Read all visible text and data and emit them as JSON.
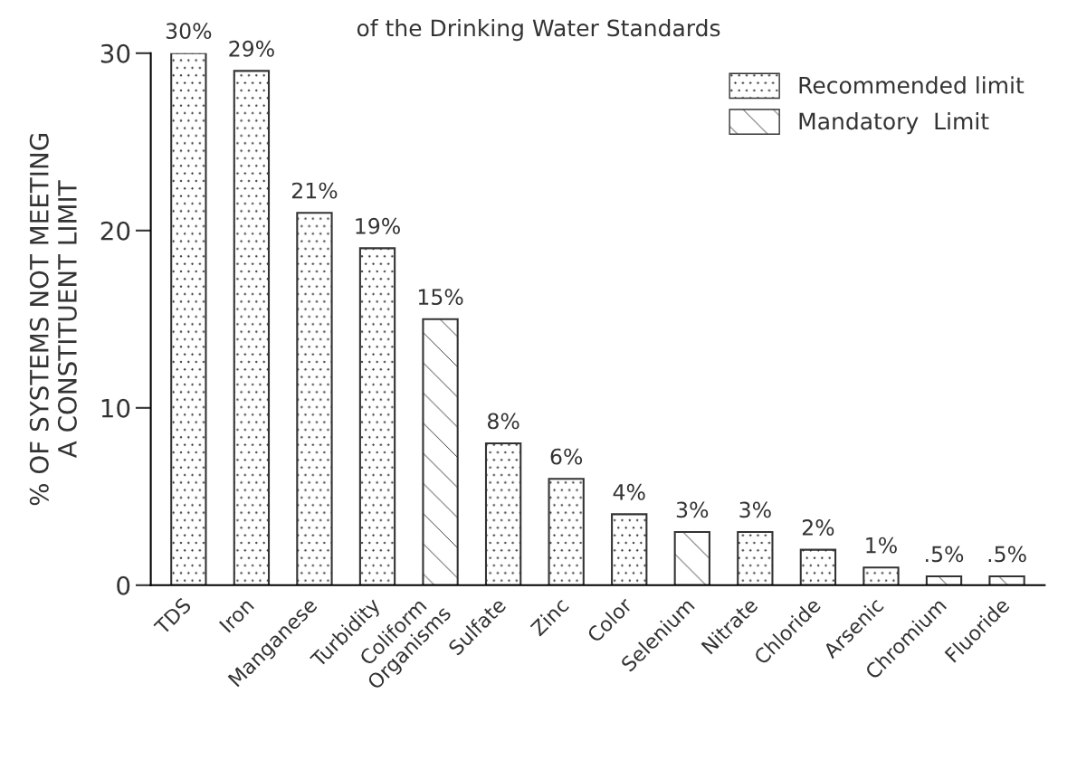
{
  "chart_data": {
    "type": "bar",
    "title": "of the Drinking Water Standards",
    "ylabel": "% OF SYSTEMS NOT MEETING\nA CONSTITUENT LIMIT",
    "categories": [
      "TDS",
      "Iron",
      "Manganese",
      "Turbidity",
      "Coliform\nOrganisms",
      "Sulfate",
      "Zinc",
      "Color",
      "Selenium",
      "Nitrate",
      "Chloride",
      "Arsenic",
      "Chromium",
      "Fluoride"
    ],
    "series": [
      {
        "name": "Recommended limit",
        "color": "#333333",
        "values": [
          30,
          29,
          21,
          19,
          null,
          8,
          6,
          4,
          null,
          3,
          2,
          1,
          null,
          null
        ],
        "value_labels": [
          "30%",
          "29%",
          "21%",
          "19%",
          null,
          "8%",
          "6%",
          "4%",
          null,
          "3%",
          "2%",
          "1%",
          null,
          null
        ]
      },
      {
        "name": "Mandatory  Limit",
        "color": "#333333",
        "values": [
          null,
          null,
          null,
          null,
          15,
          null,
          null,
          null,
          3,
          null,
          null,
          null,
          0.5,
          0.5
        ],
        "value_labels": [
          null,
          null,
          null,
          null,
          "15%",
          null,
          null,
          null,
          "3%",
          null,
          null,
          null,
          ".5%",
          ".5%"
        ]
      }
    ],
    "ylim": [
      0,
      30
    ],
    "yticks": [
      0,
      10,
      20,
      30
    ],
    "grid": false,
    "legend": "top right"
  }
}
